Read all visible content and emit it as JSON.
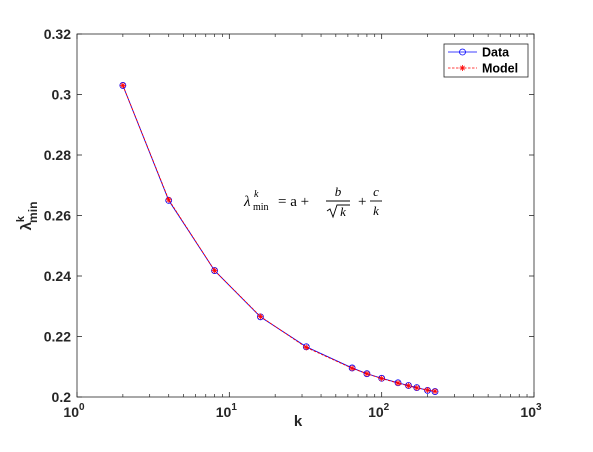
{
  "chart_data": {
    "type": "line",
    "xscale": "log",
    "xlabel": "k",
    "ylabel": {
      "base": "λ",
      "sup": "k",
      "sub": "min"
    },
    "xlim": [
      1,
      1000
    ],
    "ylim": [
      0.2,
      0.32
    ],
    "x_ticks": [
      {
        "value": 1,
        "base": "10",
        "exp": "0"
      },
      {
        "value": 10,
        "base": "10",
        "exp": "1"
      },
      {
        "value": 100,
        "base": "10",
        "exp": "2"
      },
      {
        "value": 1000,
        "base": "10",
        "exp": "3"
      }
    ],
    "y_ticks": [
      {
        "value": 0.2,
        "label": "0.2"
      },
      {
        "value": 0.22,
        "label": "0.22"
      },
      {
        "value": 0.24,
        "label": "0.24"
      },
      {
        "value": 0.26,
        "label": "0.26"
      },
      {
        "value": 0.28,
        "label": "0.28"
      },
      {
        "value": 0.3,
        "label": "0.3"
      },
      {
        "value": 0.32,
        "label": "0.32"
      }
    ],
    "grid": false,
    "legend_position": "top-right",
    "annotation": {
      "lambda": "λ",
      "sup": "k",
      "sub": "min",
      "eq": "= a +",
      "frac1_num": "b",
      "frac1_den": "k",
      "plus": "+",
      "frac2_num": "c",
      "frac2_den": "k"
    },
    "series": [
      {
        "name": "Data",
        "color": "#0000ff",
        "marker": "circle",
        "x": [
          2,
          4,
          8,
          16,
          32,
          64,
          80,
          100,
          128,
          150,
          170,
          200,
          224
        ],
        "y": [
          0.303,
          0.265,
          0.2418,
          0.2265,
          0.2166,
          0.2096,
          0.2077,
          0.2062,
          0.2047,
          0.2038,
          0.2031,
          0.2022,
          0.2018
        ]
      },
      {
        "name": "Model",
        "color": "#ff0000",
        "marker": "asterisk",
        "x": [
          2,
          4,
          8,
          16,
          32,
          64,
          80,
          100,
          128,
          150,
          170,
          200,
          224
        ],
        "y": [
          0.303,
          0.2652,
          0.2418,
          0.2266,
          0.2164,
          0.2095,
          0.2077,
          0.2061,
          0.2046,
          0.2037,
          0.203,
          0.2023,
          0.2019
        ]
      }
    ]
  }
}
